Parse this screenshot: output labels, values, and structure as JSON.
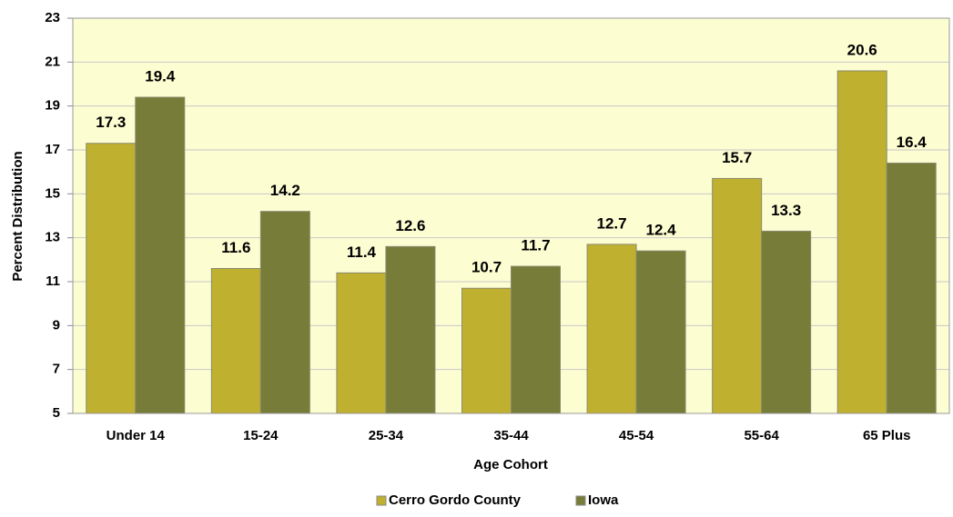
{
  "chart_data": {
    "type": "bar",
    "x_label": "Age Cohort",
    "y_label": "Percent Distribution",
    "categories": [
      "Under 14",
      "15-24",
      "25-34",
      "35-44",
      "45-54",
      "55-64",
      "65 Plus"
    ],
    "series": [
      {
        "name": "Cerro Gordo County",
        "color": "#bfb030",
        "values": [
          17.3,
          11.6,
          11.4,
          10.7,
          12.7,
          15.7,
          20.6
        ]
      },
      {
        "name": "Iowa",
        "color": "#777c38",
        "values": [
          19.4,
          14.2,
          12.6,
          11.7,
          12.4,
          13.3,
          16.4
        ]
      }
    ],
    "ylim": [
      5,
      23
    ],
    "yticks": [
      5,
      7,
      9,
      11,
      13,
      15,
      17,
      19,
      21,
      23
    ],
    "grid": true,
    "legend": "bottom",
    "plot_background": "#fdfdd2"
  }
}
